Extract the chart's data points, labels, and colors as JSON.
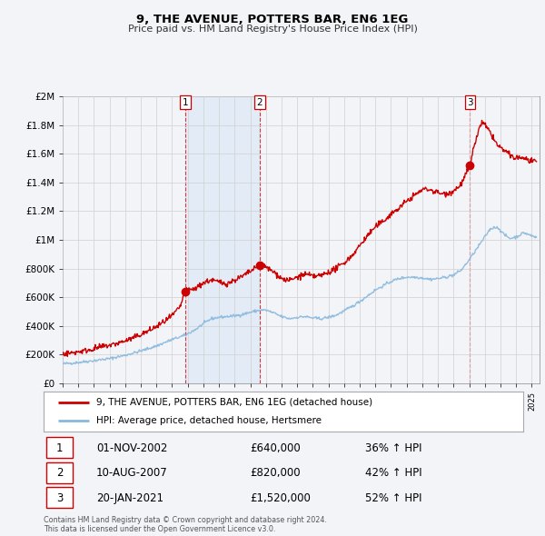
{
  "title": "9, THE AVENUE, POTTERS BAR, EN6 1EG",
  "subtitle": "Price paid vs. HM Land Registry's House Price Index (HPI)",
  "ylim": [
    0,
    2000000
  ],
  "xlim_start": 1995.0,
  "xlim_end": 2025.5,
  "yticks": [
    0,
    200000,
    400000,
    600000,
    800000,
    1000000,
    1200000,
    1400000,
    1600000,
    1800000,
    2000000
  ],
  "ytick_labels": [
    "£0",
    "£200K",
    "£400K",
    "£600K",
    "£800K",
    "£1M",
    "£1.2M",
    "£1.4M",
    "£1.6M",
    "£1.8M",
    "£2M"
  ],
  "hpi_color": "#89b8dd",
  "price_color": "#cc0000",
  "bg_color": "#f2f4f8",
  "grid_color": "#d0d0d0",
  "sale_dates": [
    2002.836,
    2007.608,
    2021.055
  ],
  "sale_prices": [
    640000,
    820000,
    1520000
  ],
  "sale_labels": [
    "1",
    "2",
    "3"
  ],
  "sale_hpi_pct": [
    "36% ↑ HPI",
    "42% ↑ HPI",
    "52% ↑ HPI"
  ],
  "sale_date_labels": [
    "01-NOV-2002",
    "10-AUG-2007",
    "20-JAN-2021"
  ],
  "sale_price_labels": [
    "£640,000",
    "£820,000",
    "£1,520,000"
  ],
  "legend_line1": "9, THE AVENUE, POTTERS BAR, EN6 1EG (detached house)",
  "legend_line2": "HPI: Average price, detached house, Hertsmere",
  "footnote": "Contains HM Land Registry data © Crown copyright and database right 2024.\nThis data is licensed under the Open Government Licence v3.0.",
  "shaded_region": [
    2002.836,
    2007.608
  ]
}
